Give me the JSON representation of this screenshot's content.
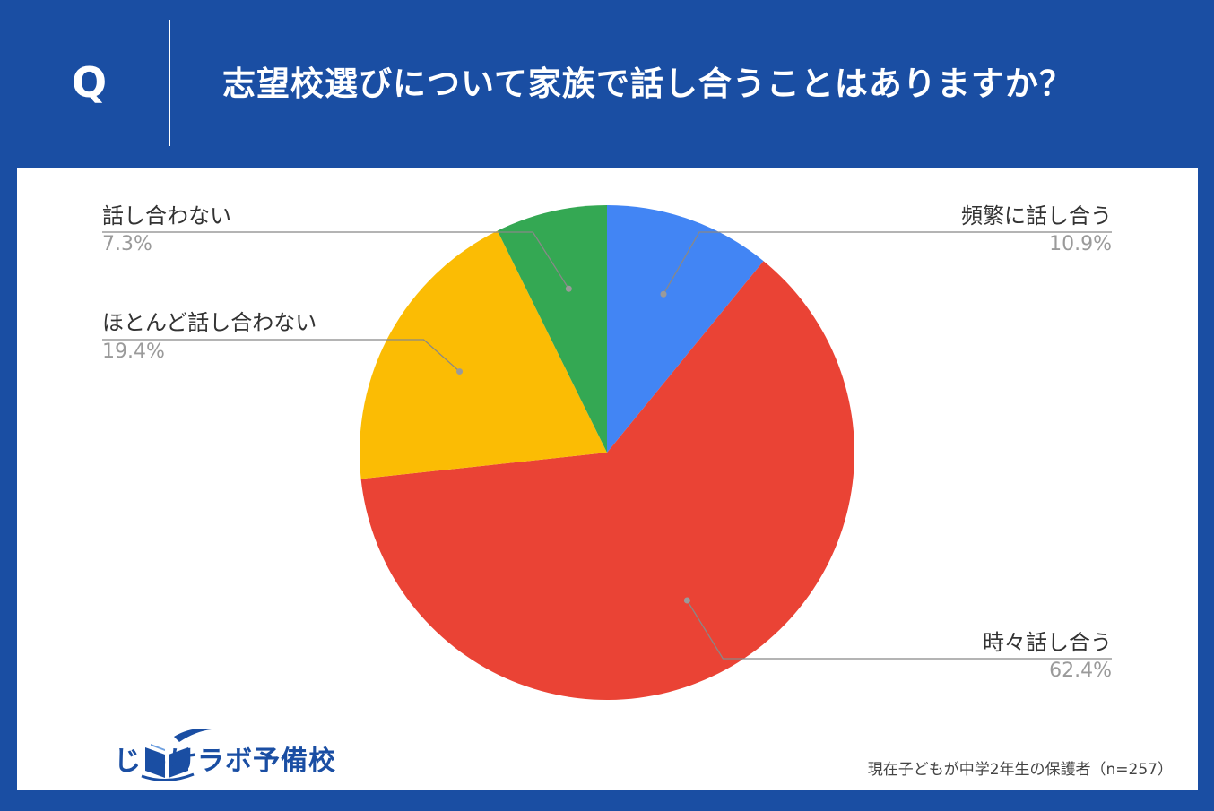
{
  "header": {
    "q_mark": "Q",
    "question": "志望校選びについて家族で話し合うことはありますか？"
  },
  "chart_data": {
    "type": "pie",
    "categories": [
      "頻繁に話し合う",
      "時々話し合う",
      "ほとんど話し合わない",
      "話し合わない"
    ],
    "values": [
      10.9,
      62.4,
      19.4,
      7.3
    ],
    "labels": [
      "10.9%",
      "62.4%",
      "19.4%",
      "7.3%"
    ],
    "colors": [
      "#4285f4",
      "#ea4335",
      "#fbbc04",
      "#34a853"
    ],
    "title": ""
  },
  "brand": {
    "name": "じゅけラボ予備校",
    "color": "#1a4ea3",
    "icon": "open-book-icon"
  },
  "footnote": "現在子どもが中学2年生の保護者（n=257）"
}
